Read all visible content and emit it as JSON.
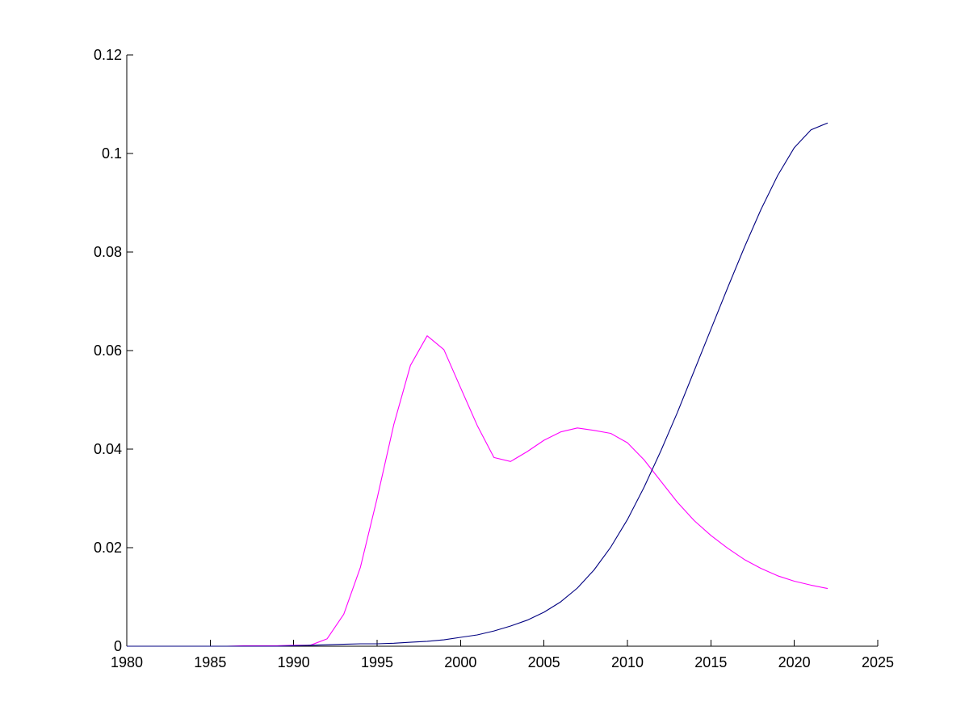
{
  "chart_data": {
    "type": "line",
    "title": "",
    "xlabel": "",
    "ylabel": "",
    "xlim": [
      1980,
      2025
    ],
    "ylim": [
      0,
      0.12
    ],
    "xticks": [
      "1980",
      "1985",
      "1990",
      "1995",
      "2000",
      "2005",
      "2010",
      "2015",
      "2020",
      "2025"
    ],
    "yticks": [
      "0",
      "0.02",
      "0.04",
      "0.06",
      "0.08",
      "0.1",
      "0.12"
    ],
    "grid": false,
    "legend": "none",
    "x": [
      1980,
      1981,
      1982,
      1983,
      1984,
      1985,
      1986,
      1987,
      1988,
      1989,
      1990,
      1991,
      1992,
      1993,
      1994,
      1995,
      1996,
      1997,
      1998,
      1999,
      2000,
      2001,
      2002,
      2003,
      2004,
      2005,
      2006,
      2007,
      2008,
      2009,
      2010,
      2011,
      2012,
      2013,
      2014,
      2015,
      2016,
      2017,
      2018,
      2019,
      2020,
      2021,
      2022
    ],
    "series": [
      {
        "color": "#ff00ff",
        "values": [
          0,
          0,
          0,
          0,
          0,
          0,
          0,
          0.0001,
          0.0001,
          0.0001,
          0.0002,
          0.0002,
          0.0015,
          0.0065,
          0.016,
          0.03,
          0.045,
          0.057,
          0.063,
          0.0602,
          0.0525,
          0.0448,
          0.0383,
          0.0375,
          0.0395,
          0.0418,
          0.0435,
          0.0443,
          0.0438,
          0.0432,
          0.0413,
          0.0378,
          0.0335,
          0.0292,
          0.0255,
          0.0225,
          0.0199,
          0.0176,
          0.0158,
          0.0143,
          0.0132,
          0.0124,
          0.0117
        ]
      },
      {
        "color": "#000080",
        "values": [
          0,
          0,
          0,
          0,
          0,
          0,
          0,
          0,
          0,
          0,
          0.0001,
          0.0002,
          0.0003,
          0.0004,
          0.0005,
          0.0005,
          0.0006,
          0.0008,
          0.001,
          0.0013,
          0.0018,
          0.0023,
          0.0031,
          0.0041,
          0.0053,
          0.0069,
          0.009,
          0.0118,
          0.0155,
          0.0201,
          0.0257,
          0.0323,
          0.0396,
          0.0475,
          0.0559,
          0.0643,
          0.0727,
          0.0809,
          0.0886,
          0.0955,
          0.1012,
          0.1048,
          0.1062
        ]
      }
    ]
  }
}
